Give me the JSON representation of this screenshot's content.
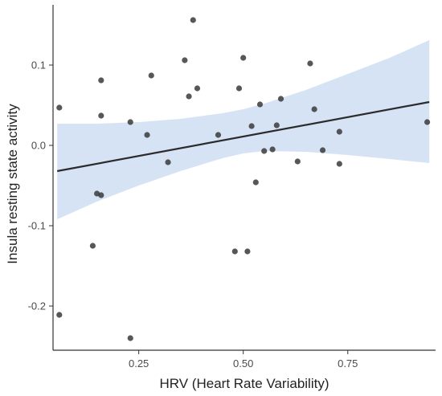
{
  "chart_data": {
    "type": "scatter",
    "title": "",
    "xlabel": "HRV (Heart Rate Variability)",
    "ylabel": "Insula resting state activity",
    "xlim": [
      0.045,
      0.96
    ],
    "ylim": [
      -0.255,
      0.175
    ],
    "xticks": [
      0.25,
      0.5,
      0.75
    ],
    "xtick_labels": [
      "0.25",
      "0.50",
      "0.75"
    ],
    "yticks": [
      -0.2,
      -0.1,
      0.0,
      0.1
    ],
    "ytick_labels": [
      "-0.2",
      "-0.1",
      "0.0",
      "0.1"
    ],
    "grid": false,
    "points": [
      {
        "x": 0.06,
        "y": 0.047
      },
      {
        "x": 0.06,
        "y": -0.211
      },
      {
        "x": 0.14,
        "y": -0.125
      },
      {
        "x": 0.15,
        "y": -0.06
      },
      {
        "x": 0.16,
        "y": -0.062
      },
      {
        "x": 0.16,
        "y": 0.081
      },
      {
        "x": 0.16,
        "y": 0.037
      },
      {
        "x": 0.23,
        "y": 0.029
      },
      {
        "x": 0.23,
        "y": -0.24
      },
      {
        "x": 0.27,
        "y": 0.013
      },
      {
        "x": 0.28,
        "y": 0.087
      },
      {
        "x": 0.32,
        "y": -0.021
      },
      {
        "x": 0.36,
        "y": 0.106
      },
      {
        "x": 0.37,
        "y": 0.061
      },
      {
        "x": 0.38,
        "y": 0.156
      },
      {
        "x": 0.39,
        "y": 0.071
      },
      {
        "x": 0.44,
        "y": 0.013
      },
      {
        "x": 0.48,
        "y": -0.132
      },
      {
        "x": 0.49,
        "y": 0.071
      },
      {
        "x": 0.5,
        "y": 0.109
      },
      {
        "x": 0.51,
        "y": -0.132
      },
      {
        "x": 0.52,
        "y": 0.024
      },
      {
        "x": 0.53,
        "y": -0.046
      },
      {
        "x": 0.54,
        "y": 0.051
      },
      {
        "x": 0.55,
        "y": -0.007
      },
      {
        "x": 0.57,
        "y": -0.005
      },
      {
        "x": 0.58,
        "y": 0.025
      },
      {
        "x": 0.59,
        "y": 0.058
      },
      {
        "x": 0.63,
        "y": -0.02
      },
      {
        "x": 0.66,
        "y": 0.102
      },
      {
        "x": 0.67,
        "y": 0.045
      },
      {
        "x": 0.69,
        "y": -0.006
      },
      {
        "x": 0.73,
        "y": 0.017
      },
      {
        "x": 0.73,
        "y": -0.023
      },
      {
        "x": 0.94,
        "y": 0.029
      }
    ],
    "fit_line": {
      "x": [
        0.055,
        0.945
      ],
      "y": [
        -0.032,
        0.054
      ]
    },
    "confidence_band": {
      "x": [
        0.055,
        0.15,
        0.25,
        0.35,
        0.45,
        0.5,
        0.55,
        0.65,
        0.75,
        0.85,
        0.945
      ],
      "lower": [
        -0.092,
        -0.07,
        -0.05,
        -0.032,
        -0.016,
        -0.01,
        -0.007,
        -0.008,
        -0.012,
        -0.017,
        -0.022
      ],
      "upper": [
        0.027,
        0.027,
        0.029,
        0.033,
        0.04,
        0.045,
        0.052,
        0.069,
        0.089,
        0.109,
        0.131
      ]
    },
    "colors": {
      "point": "#3a3a3a",
      "line": "#2b2b2b",
      "band": "#d6e3f5",
      "axis": "#333333"
    }
  }
}
